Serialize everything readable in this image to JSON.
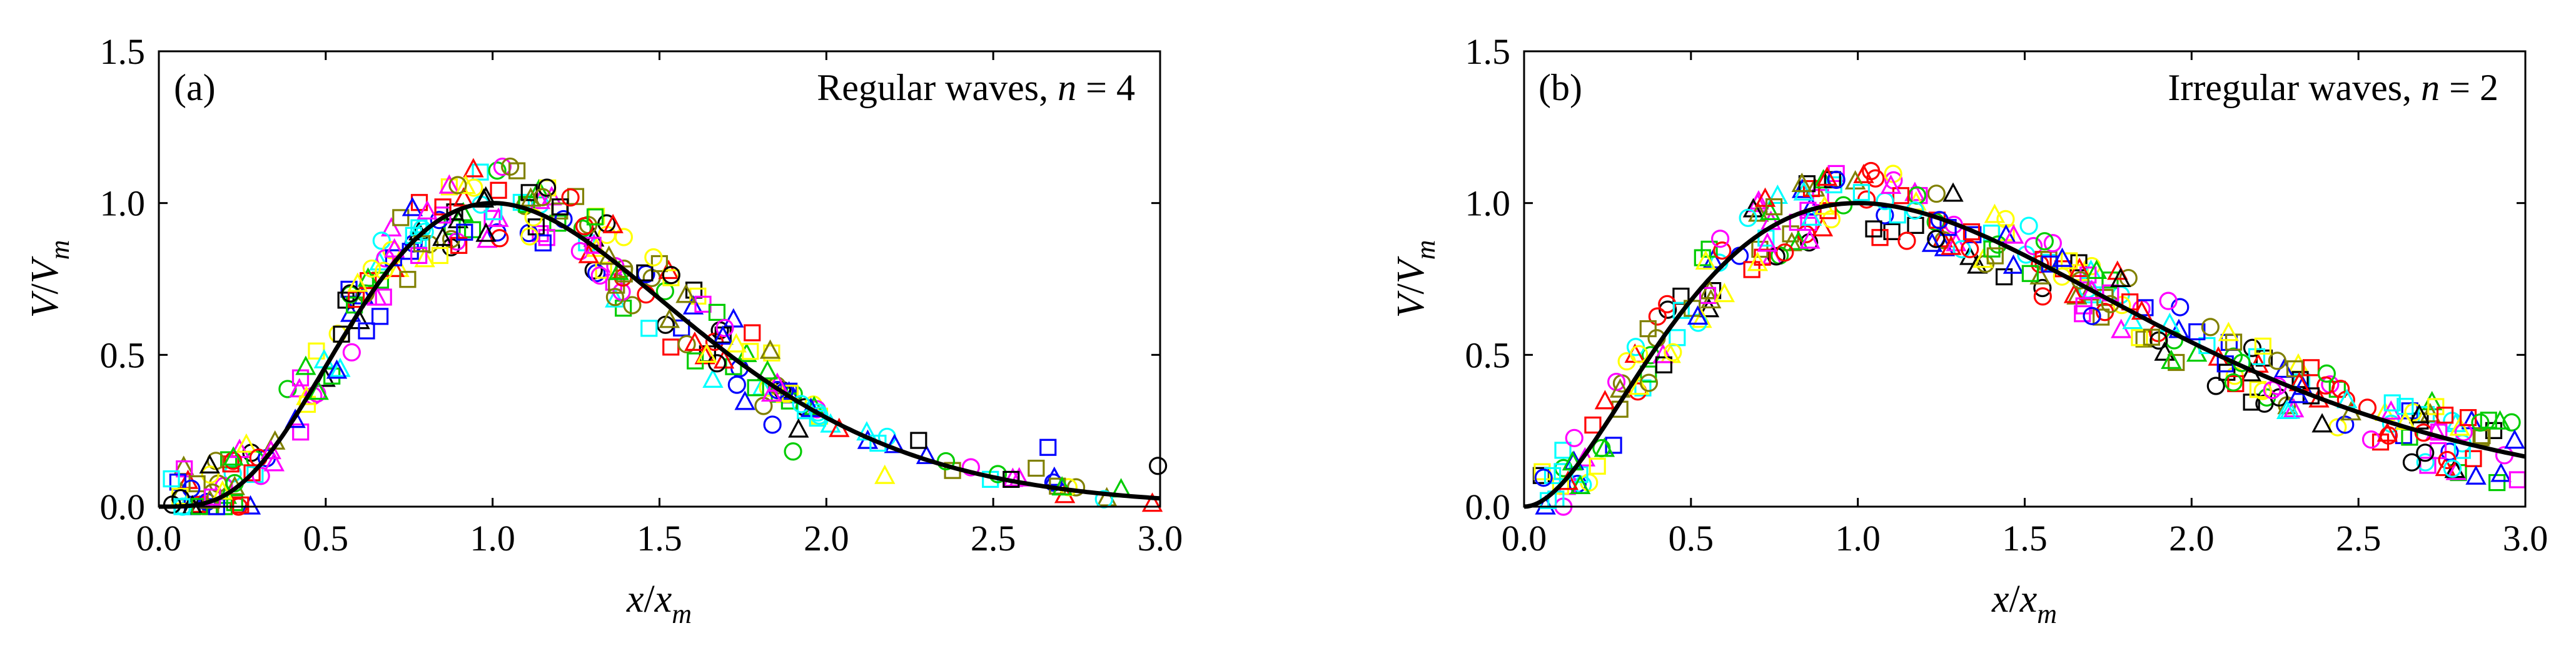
{
  "figure": {
    "marker_colors": [
      "#000000",
      "#ff0000",
      "#0000ff",
      "#00cc00",
      "#ff00ff",
      "#00ffff",
      "#ffff00",
      "#808000"
    ],
    "marker_shapes": [
      "circle",
      "square",
      "triangle"
    ]
  },
  "chart_data": [
    {
      "type": "scatter",
      "panel_label": "(a)",
      "title_text": "Regular waves, ",
      "title_var": "n",
      "title_value": " = 4",
      "xlabel_num": "x",
      "xlabel_den": "x",
      "xlabel_sub": "m",
      "ylabel_num": "V",
      "ylabel_den": "V",
      "ylabel_sub": "m",
      "xlim": [
        0,
        3.0
      ],
      "ylim": [
        0,
        1.5
      ],
      "xticks": [
        "0.0",
        "0.5",
        "1.0",
        "1.5",
        "2.0",
        "2.5",
        "3.0"
      ],
      "yticks": [
        "0.0",
        "0.5",
        "1.0",
        "1.5"
      ],
      "fit_n": 4,
      "fit_formula": "V/Vm = (x/xm)^? gamma-type curve, peak 1.0 at x/xm = 1",
      "scatter_seed": 11,
      "scatter_profile": "regular"
    },
    {
      "type": "scatter",
      "panel_label": "(b)",
      "title_text": "Irregular waves, ",
      "title_var": "n",
      "title_value": " = 2",
      "xlabel_num": "x",
      "xlabel_den": "x",
      "xlabel_sub": "m",
      "ylabel_num": "V",
      "ylabel_den": "V",
      "ylabel_sub": "m",
      "xlim": [
        0,
        3.0
      ],
      "ylim": [
        0,
        1.5
      ],
      "xticks": [
        "0.0",
        "0.5",
        "1.0",
        "1.5",
        "2.0",
        "2.5",
        "3.0"
      ],
      "yticks": [
        "0.0",
        "0.5",
        "1.0",
        "1.5"
      ],
      "fit_n": 2,
      "fit_formula": "V/Vm = (x/xm)^? gamma-type curve, peak 1.0 at x/xm = 1",
      "scatter_seed": 29,
      "scatter_profile": "irregular"
    }
  ]
}
